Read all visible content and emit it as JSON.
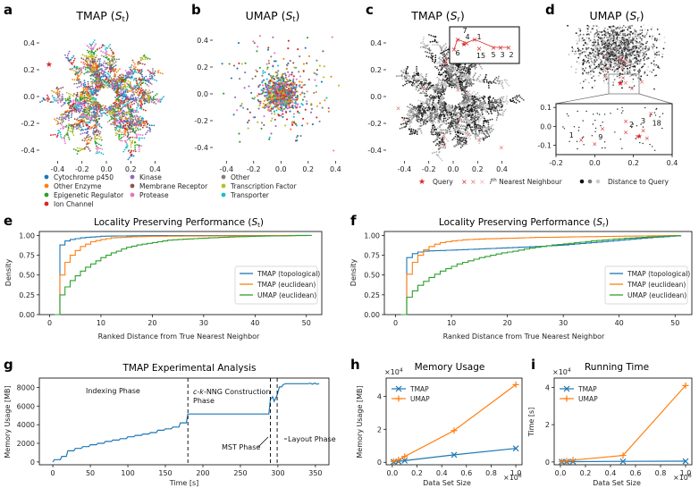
{
  "chart_data": [
    {
      "panel": "a",
      "type": "scatter",
      "title": "TMAP (S_t)",
      "title_main": "TMAP (",
      "title_sym": "S",
      "title_sub": "t",
      "title_close": ")",
      "xlim": [
        -0.55,
        0.55
      ],
      "ylim": [
        -0.48,
        0.52
      ],
      "xticks": [
        "-0.4",
        "-0.2",
        "0.0",
        "0.2",
        "0.4"
      ],
      "xtick_values": [
        -0.4,
        -0.2,
        0,
        0.2,
        0.4
      ],
      "yticks": [
        "0.4",
        "0.2",
        "0.0",
        "-0.2",
        "-0.4"
      ],
      "ytick_values": [
        0.4,
        0.2,
        0,
        -0.2,
        -0.4
      ],
      "legend": [
        {
          "label": "Cytochrome p450",
          "color": "#1f77b4"
        },
        {
          "label": "Kinase",
          "color": "#9467bd"
        },
        {
          "label": "Other",
          "color": "#7f7f7f"
        },
        {
          "label": "Other Enzyme",
          "color": "#ff7f0e"
        },
        {
          "label": "Membrane Receptor",
          "color": "#8c564b"
        },
        {
          "label": "Transcription Factor",
          "color": "#bcbd22"
        },
        {
          "label": "Epigenetic Regulator",
          "color": "#2ca02c"
        },
        {
          "label": "Protease",
          "color": "#e377c2"
        },
        {
          "label": "Transporter",
          "color": "#17becf"
        },
        {
          "label": "Ion Channel",
          "color": "#d62728"
        }
      ]
    },
    {
      "panel": "b",
      "type": "scatter",
      "title": "UMAP (S_t)",
      "title_main": "UMAP (",
      "title_sym": "S",
      "title_sub": "t",
      "title_close": ")",
      "xlim": [
        -0.5,
        0.47
      ],
      "ylim": [
        -0.5,
        0.5
      ],
      "xticks": [
        "-0.4",
        "-0.2",
        "0.0",
        "0.2",
        "0.4"
      ],
      "xtick_values": [
        -0.4,
        -0.2,
        0,
        0.2,
        0.4
      ],
      "yticks": [
        "0.4",
        "0.2",
        "0.0",
        "-0.2",
        "-0.4"
      ],
      "ytick_values": [
        0.4,
        0.2,
        0,
        -0.2,
        -0.4
      ]
    },
    {
      "panel": "c",
      "type": "scatter",
      "title": "TMAP (S_r)",
      "title_main": "TMAP (",
      "title_sym": "S",
      "title_sub": "r",
      "title_close": ")",
      "xlim": [
        -0.55,
        0.55
      ],
      "ylim": [
        -0.48,
        0.52
      ],
      "xticks": [
        "-0.4",
        "-0.2",
        "0.0",
        "0.2",
        "0.4"
      ],
      "xtick_values": [
        -0.4,
        -0.2,
        0,
        0.2,
        0.4
      ],
      "yticks": [
        "0.4",
        "0.2",
        "0.0",
        "-0.2",
        "-0.4"
      ],
      "ytick_values": [
        0.4,
        0.2,
        0,
        -0.2,
        -0.4
      ],
      "inset_labels": [
        "7",
        "4",
        "1",
        "6",
        "15",
        "5",
        "3",
        "2"
      ]
    },
    {
      "panel": "d",
      "type": "scatter",
      "title": "UMAP (S_r)",
      "title_main": "UMAP (",
      "title_sym": "S",
      "title_sub": "r",
      "title_close": ")",
      "xlim": [
        -0.2,
        0.4
      ],
      "ylim": [
        -0.15,
        0.12
      ],
      "xticks": [
        "-0.2",
        "0.0",
        "0.2",
        "0.4"
      ],
      "xtick_values": [
        -0.2,
        0,
        0.2,
        0.4
      ],
      "yticks": [
        "0.1",
        "0.0",
        "-0.1"
      ],
      "ytick_values": [
        0.1,
        0,
        -0.1
      ],
      "inset_labels": [
        "1",
        "9",
        "2",
        "3",
        "18"
      ],
      "legend": {
        "query": "Query",
        "neighbour_prefix": "i",
        "neighbour_sup": "th",
        "neighbour_rest": " Nearest Neighbour",
        "distance": "Distance to Query"
      }
    },
    {
      "panel": "e",
      "type": "line",
      "title": "Locality Preserving Performance (S_t)",
      "title_main": "Locality Preserving Performance (",
      "title_sym": "S",
      "title_sub": "t",
      "title_close": ")",
      "xlabel": "Ranked Distance from True Nearest Neighbor",
      "ylabel": "Density",
      "xlim": [
        -2,
        53
      ],
      "ylim": [
        0,
        1.05
      ],
      "xticks": [
        "0",
        "10",
        "20",
        "30",
        "40",
        "50"
      ],
      "xtick_values": [
        0,
        10,
        20,
        30,
        40,
        50
      ],
      "yticks": [
        "0.00",
        "0.25",
        "0.50",
        "0.75",
        "1.00"
      ],
      "ytick_values": [
        0,
        0.25,
        0.5,
        0.75,
        1.0
      ],
      "legend_loc": "center-right",
      "series": [
        {
          "name": "TMAP (topological)",
          "color": "#1f77b4",
          "x": [
            1,
            2,
            3,
            4,
            5,
            6,
            8,
            10,
            15,
            20,
            51
          ],
          "y": [
            0,
            0.88,
            0.93,
            0.95,
            0.96,
            0.97,
            0.98,
            0.99,
            0.995,
            0.998,
            1.0
          ]
        },
        {
          "name": "TMAP (euclidean)",
          "color": "#ff7f0e",
          "x": [
            1,
            2,
            3,
            4,
            5,
            6,
            7,
            8,
            10,
            12,
            15,
            20,
            51
          ],
          "y": [
            0,
            0.5,
            0.66,
            0.75,
            0.81,
            0.86,
            0.89,
            0.92,
            0.95,
            0.97,
            0.98,
            0.99,
            1.0
          ]
        },
        {
          "name": "UMAP (euclidean)",
          "color": "#2ca02c",
          "x": [
            1,
            2,
            3,
            4,
            5,
            6,
            7,
            8,
            9,
            10,
            11,
            12,
            13,
            14,
            15,
            17,
            19,
            21,
            23,
            25,
            28,
            31,
            35,
            40,
            45,
            51
          ],
          "y": [
            0,
            0.25,
            0.35,
            0.43,
            0.49,
            0.55,
            0.6,
            0.64,
            0.68,
            0.72,
            0.75,
            0.78,
            0.8,
            0.83,
            0.85,
            0.88,
            0.9,
            0.92,
            0.94,
            0.95,
            0.96,
            0.97,
            0.98,
            0.99,
            0.995,
            1.0
          ]
        }
      ]
    },
    {
      "panel": "f",
      "type": "line",
      "title": "Locality Preserving Performance (S_r)",
      "title_main": "Locality Preserving Performance (",
      "title_sym": "S",
      "title_sub": "r",
      "title_close": ")",
      "xlabel": "Ranked Distance from True Nearest Neighbor",
      "ylabel": "Density",
      "xlim": [
        -2,
        53
      ],
      "ylim": [
        0,
        1.05
      ],
      "xticks": [
        "0",
        "10",
        "20",
        "30",
        "40",
        "50"
      ],
      "xtick_values": [
        0,
        10,
        20,
        30,
        40,
        50
      ],
      "yticks": [
        "0.00",
        "0.25",
        "0.50",
        "0.75",
        "1.00"
      ],
      "ytick_values": [
        0,
        0.25,
        0.5,
        0.75,
        1.0
      ],
      "legend_loc": "center-right",
      "series": [
        {
          "name": "TMAP (topological)",
          "color": "#1f77b4",
          "x": [
            1,
            2,
            3,
            4,
            5,
            6,
            8,
            10,
            15,
            20,
            25,
            30,
            35,
            40,
            45,
            51
          ],
          "y": [
            0,
            0.72,
            0.77,
            0.79,
            0.8,
            0.805,
            0.81,
            0.815,
            0.83,
            0.845,
            0.86,
            0.88,
            0.91,
            0.94,
            0.97,
            1.0
          ]
        },
        {
          "name": "TMAP (euclidean)",
          "color": "#ff7f0e",
          "x": [
            1,
            2,
            3,
            4,
            5,
            6,
            7,
            8,
            10,
            12,
            15,
            20,
            25,
            30,
            40,
            51
          ],
          "y": [
            0,
            0.51,
            0.66,
            0.75,
            0.82,
            0.86,
            0.89,
            0.91,
            0.93,
            0.945,
            0.955,
            0.965,
            0.975,
            0.98,
            0.99,
            1.0
          ]
        },
        {
          "name": "UMAP (euclidean)",
          "color": "#2ca02c",
          "x": [
            1,
            2,
            3,
            4,
            5,
            6,
            7,
            8,
            9,
            10,
            11,
            12,
            13,
            14,
            15,
            17,
            19,
            21,
            23,
            25,
            28,
            31,
            35,
            40,
            45,
            51
          ],
          "y": [
            0,
            0.22,
            0.3,
            0.37,
            0.42,
            0.47,
            0.51,
            0.55,
            0.58,
            0.61,
            0.64,
            0.66,
            0.68,
            0.7,
            0.72,
            0.75,
            0.78,
            0.8,
            0.83,
            0.85,
            0.88,
            0.9,
            0.93,
            0.96,
            0.98,
            1.0
          ]
        }
      ]
    },
    {
      "panel": "g",
      "type": "line",
      "title": "TMAP Experimental Analysis",
      "xlabel": "Time [s]",
      "ylabel": "Memory Usage [MB]",
      "xlim": [
        -18,
        368
      ],
      "ylim": [
        -300,
        9000
      ],
      "xticks": [
        "0",
        "50",
        "100",
        "150",
        "200",
        "250",
        "300",
        "350"
      ],
      "xtick_values": [
        0,
        50,
        100,
        150,
        200,
        250,
        300,
        350
      ],
      "yticks": [
        "0",
        "2000",
        "4000",
        "6000",
        "8000"
      ],
      "ytick_values": [
        0,
        2000,
        4000,
        6000,
        8000
      ],
      "phase_lines": [
        180,
        290,
        299
      ],
      "phases": [
        "Indexing Phase",
        "c-k-NNG Construction Phase",
        "MST Phase",
        "Layout Phase"
      ],
      "phase_c_italic": "c",
      "phase_k_italic": "k",
      "phase_rest": "-NNG Construction",
      "phase_rest2": "Phase",
      "series": [
        {
          "name": "TMAP",
          "color": "#1f77b4",
          "steps": [
            [
              0,
              0
            ],
            [
              2,
              250
            ],
            [
              10,
              250
            ],
            [
              12,
              600
            ],
            [
              18,
              600
            ],
            [
              20,
              1200
            ],
            [
              28,
              1200
            ],
            [
              30,
              1450
            ],
            [
              38,
              1450
            ],
            [
              40,
              1650
            ],
            [
              48,
              1650
            ],
            [
              50,
              1850
            ],
            [
              58,
              1850
            ],
            [
              60,
              2000
            ],
            [
              68,
              2000
            ],
            [
              70,
              2200
            ],
            [
              78,
              2200
            ],
            [
              80,
              2350
            ],
            [
              88,
              2350
            ],
            [
              90,
              2500
            ],
            [
              98,
              2500
            ],
            [
              100,
              2700
            ],
            [
              108,
              2700
            ],
            [
              110,
              2850
            ],
            [
              118,
              2850
            ],
            [
              120,
              3000
            ],
            [
              128,
              3000
            ],
            [
              130,
              3150
            ],
            [
              138,
              3150
            ],
            [
              140,
              3400
            ],
            [
              148,
              3400
            ],
            [
              150,
              3550
            ],
            [
              158,
              3550
            ],
            [
              160,
              3750
            ],
            [
              168,
              3750
            ],
            [
              170,
              4200
            ],
            [
              178,
              4200
            ],
            [
              180,
              5150
            ],
            [
              288,
              5150
            ],
            [
              290,
              6700
            ],
            [
              293,
              7000
            ],
            [
              295,
              6500
            ],
            [
              298,
              7000
            ],
            [
              299,
              7200
            ],
            [
              302,
              8050
            ],
            [
              305,
              8050
            ],
            [
              307,
              8300
            ],
            [
              310,
              8400
            ],
            [
              340,
              8400
            ],
            [
              343,
              8450
            ],
            [
              346,
              8350
            ],
            [
              349,
              8450
            ],
            [
              352,
              8350
            ],
            [
              355,
              8400
            ]
          ]
        }
      ]
    },
    {
      "panel": "h",
      "type": "line",
      "title": "Memory Usage",
      "xlabel": "Data Set Size",
      "ylabel": "Memory Usage [MB]",
      "x_exponent": "×10",
      "x_exponent_pow": "6",
      "y_exponent": "×10",
      "y_exponent_pow": "4",
      "xlim": [
        -0.05,
        1.05
      ],
      "ylim": [
        -0.15,
        5.1
      ],
      "xticks": [
        "0.0",
        "0.2",
        "0.4",
        "0.6",
        "0.8",
        "1.0"
      ],
      "xtick_values": [
        0,
        0.2,
        0.4,
        0.6,
        0.8,
        1.0
      ],
      "yticks": [
        "0",
        "2",
        "4"
      ],
      "ytick_values": [
        0,
        2,
        4
      ],
      "legend_loc": "upper-left",
      "series": [
        {
          "name": "TMAP",
          "color": "#1f77b4",
          "marker": "x",
          "x": [
            0.01,
            0.05,
            0.1,
            0.5,
            1.0
          ],
          "y": [
            0.02,
            0.05,
            0.1,
            0.45,
            0.84
          ]
        },
        {
          "name": "UMAP",
          "color": "#ff7f0e",
          "marker": "+",
          "x": [
            0.01,
            0.05,
            0.1,
            0.5,
            1.0
          ],
          "y": [
            0.05,
            0.15,
            0.35,
            1.92,
            4.7
          ]
        }
      ]
    },
    {
      "panel": "i",
      "type": "line",
      "title": "Running Time",
      "xlabel": "Data Set Size",
      "ylabel": "Time [s]",
      "x_exponent": "×10",
      "x_exponent_pow": "6",
      "y_exponent": "×10",
      "y_exponent_pow": "4",
      "xlim": [
        -0.05,
        1.05
      ],
      "ylim": [
        -0.15,
        4.5
      ],
      "xticks": [
        "0.0",
        "0.2",
        "0.4",
        "0.6",
        "0.8",
        "1.0"
      ],
      "xtick_values": [
        0,
        0.2,
        0.4,
        0.6,
        0.8,
        1.0
      ],
      "yticks": [
        "0",
        "2",
        "4"
      ],
      "ytick_values": [
        0,
        2,
        4
      ],
      "legend_loc": "upper-left",
      "series": [
        {
          "name": "TMAP",
          "color": "#1f77b4",
          "marker": "x",
          "x": [
            0.01,
            0.05,
            0.1,
            0.5,
            1.0
          ],
          "y": [
            0.01,
            0.01,
            0.02,
            0.03,
            0.04
          ]
        },
        {
          "name": "UMAP",
          "color": "#ff7f0e",
          "marker": "+",
          "x": [
            0.01,
            0.05,
            0.1,
            0.5,
            1.0
          ],
          "y": [
            0.02,
            0.05,
            0.1,
            0.35,
            4.1
          ]
        }
      ]
    }
  ]
}
